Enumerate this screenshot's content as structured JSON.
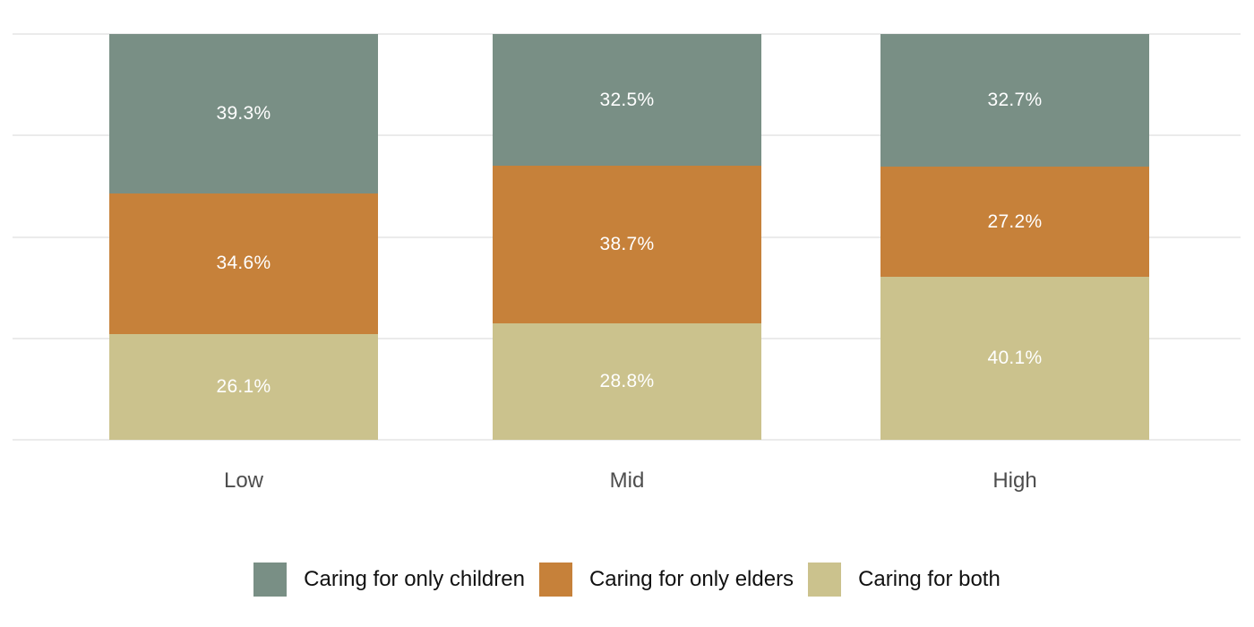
{
  "chart_data": {
    "type": "bar",
    "stacked": true,
    "orientation": "vertical",
    "title": "",
    "xlabel": "",
    "ylabel": "",
    "categories": [
      "Low",
      "Mid",
      "High"
    ],
    "series": [
      {
        "name": "Caring for only children",
        "color": "#798F85",
        "values": [
          39.3,
          32.5,
          32.7
        ]
      },
      {
        "name": "Caring for only elders",
        "color": "#C6813A",
        "values": [
          34.6,
          38.7,
          27.2
        ]
      },
      {
        "name": "Caring for both",
        "color": "#CBC28D",
        "values": [
          26.1,
          28.8,
          40.1
        ]
      }
    ],
    "stacking_order": "top-to-bottom",
    "value_labels": [
      [
        "39.3%",
        "34.6%",
        "26.1%"
      ],
      [
        "32.5%",
        "38.7%",
        "28.8%"
      ],
      [
        "32.7%",
        "27.2%",
        "40.1%"
      ]
    ],
    "value_suffix": "%",
    "ylim": [
      0,
      100
    ],
    "grid_interval": 25,
    "grid": true,
    "y_tick_labels_shown": false,
    "legend_position": "bottom",
    "colors": {
      "background": "#FFFFFF",
      "gridline": "#EBEBEB",
      "bar_label_text": "#FFFFFF",
      "axis_label_text": "#4D4D4D",
      "legend_text": "#111111"
    }
  }
}
